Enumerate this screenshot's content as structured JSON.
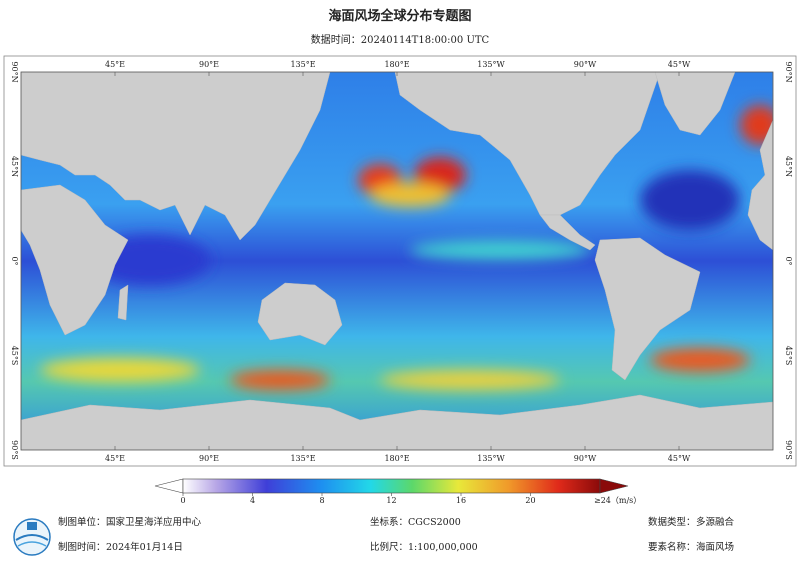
{
  "title": "海面风场全球分布专题图",
  "subtitle": "数据时间：20240114T18:00:00 UTC",
  "map": {
    "lon_labels": [
      "45°E",
      "90°E",
      "135°E",
      "180°E",
      "135°W",
      "90°W",
      "45°W"
    ],
    "lat_labels": [
      "90°N",
      "45°N",
      "0°",
      "45°S",
      "90°S"
    ]
  },
  "colorbar": {
    "range": [
      0,
      24
    ],
    "ticks": [
      0,
      4,
      8,
      12,
      16,
      20
    ],
    "end_label": "≥24（m/s）"
  },
  "footer": [
    {
      "label": "制图单位：",
      "value": "国家卫星海洋应用中心"
    },
    {
      "label": "坐标系：",
      "value": "CGCS2000"
    },
    {
      "label": "数据类型：",
      "value": "多源融合"
    },
    {
      "label": "制图时间：",
      "value": "2024年01月14日"
    },
    {
      "label": "比例尺：",
      "value": "1:100,000,000"
    },
    {
      "label": "要素名称：",
      "value": "海面风场"
    }
  ]
}
